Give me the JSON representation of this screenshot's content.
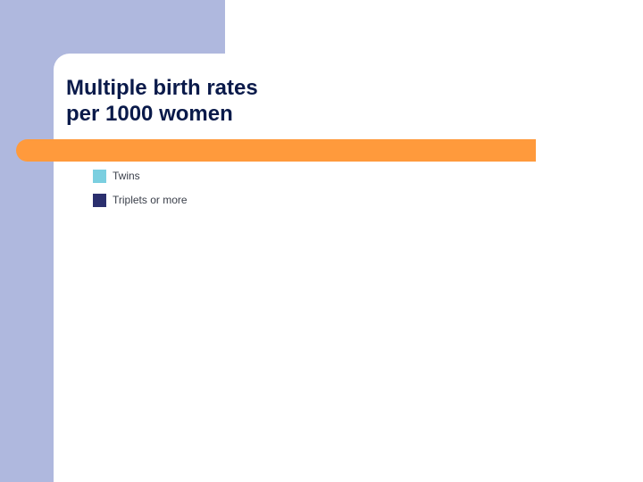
{
  "slide": {
    "title_lines": [
      "Multiple birth rates",
      "per 1000 women"
    ]
  },
  "colors": {
    "sidebar": "#afb8de",
    "accent_bar": "#ff9a3c"
  },
  "chart_data": {
    "type": "bar",
    "title": "",
    "categories": [],
    "series": [
      {
        "name": "Twins",
        "color": "#7bcfe0",
        "values": []
      },
      {
        "name": "Triplets or more",
        "color": "#2b2f6e",
        "values": []
      }
    ],
    "legend_position": "top-left"
  }
}
